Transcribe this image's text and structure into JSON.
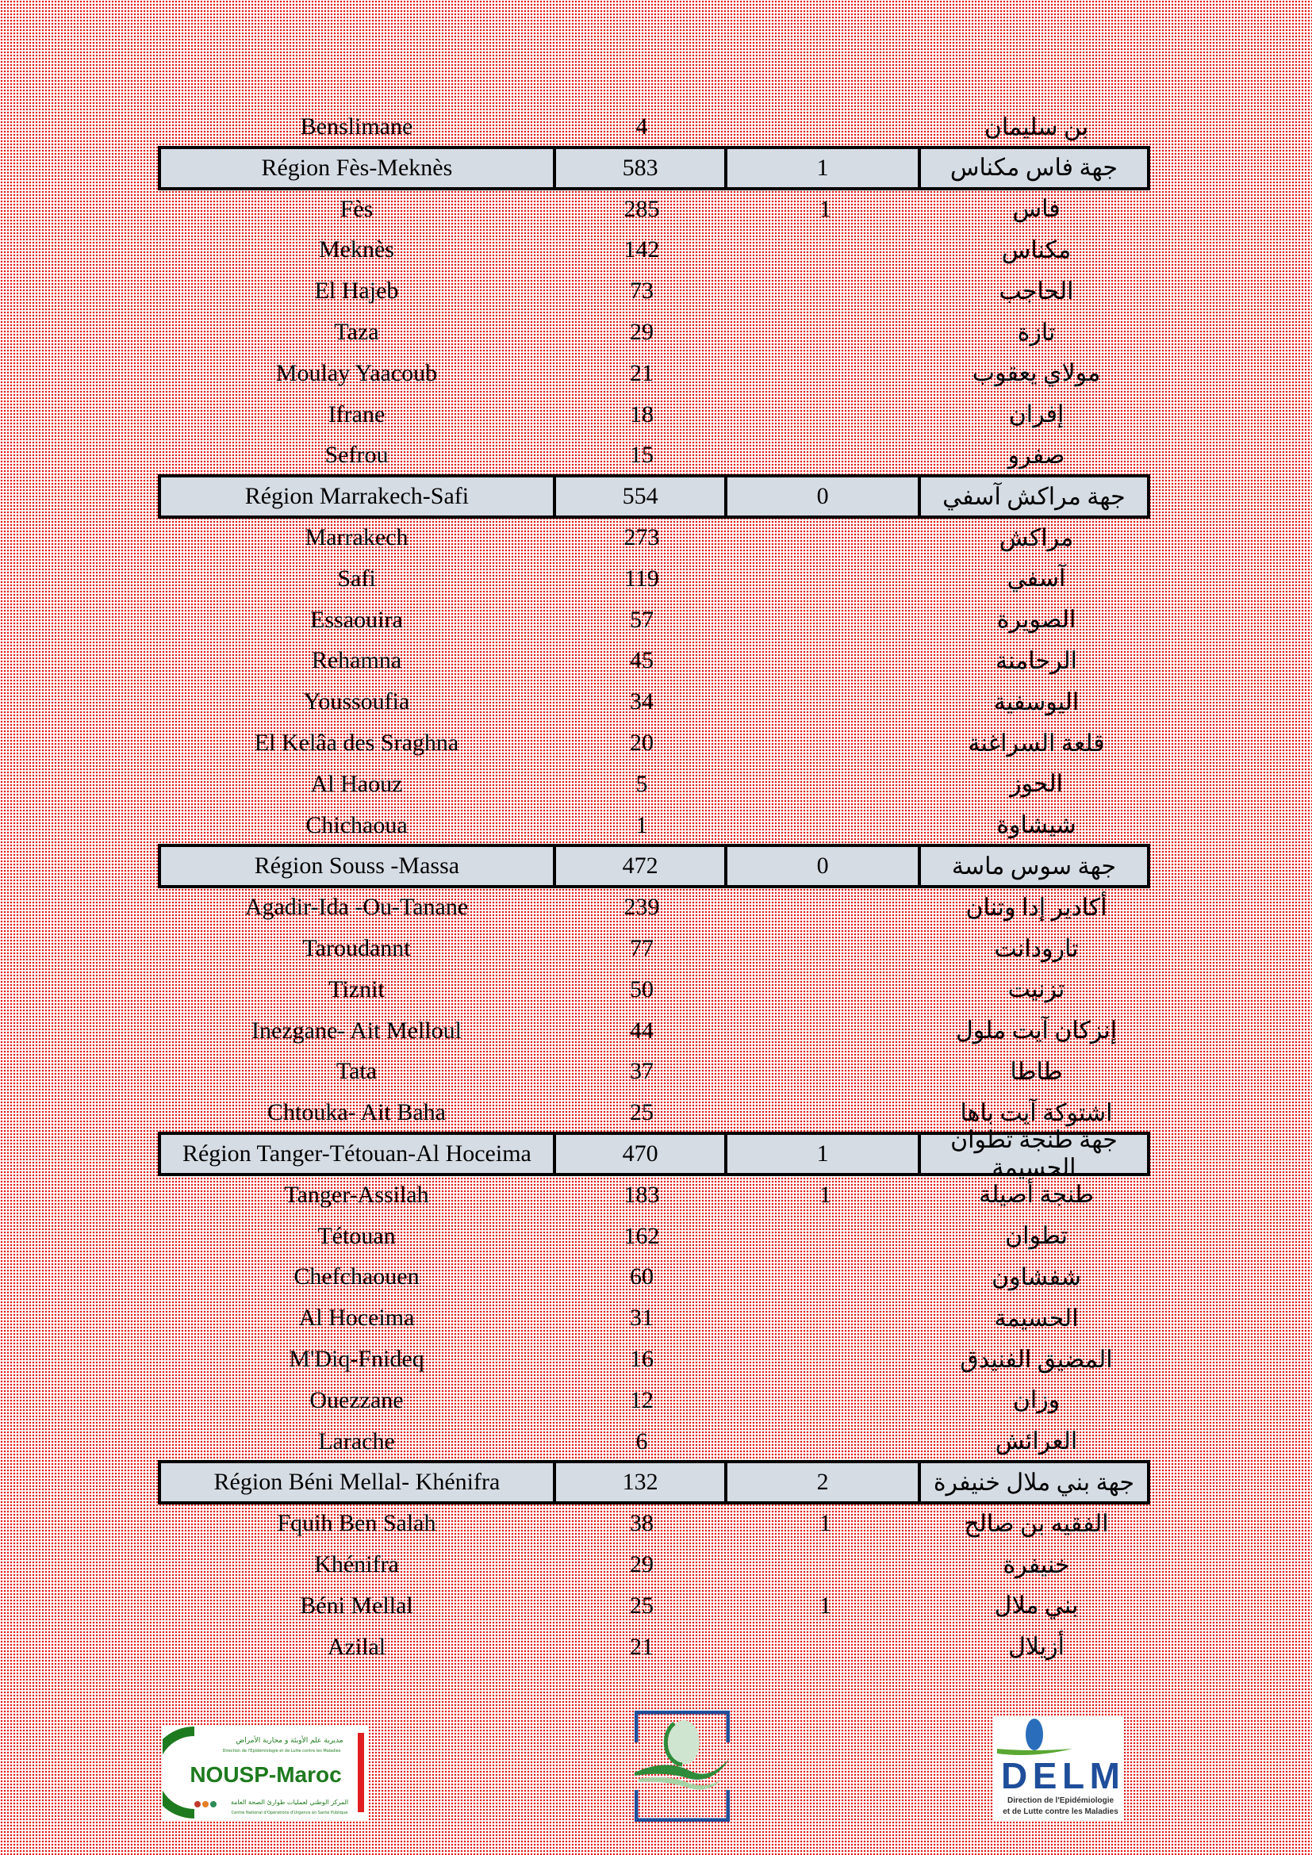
{
  "rows": [
    {
      "type": "row",
      "fr": "Benslimane",
      "cases": "4",
      "deaths": "",
      "ar": "بن سليمان"
    },
    {
      "type": "header",
      "fr": "Région Fès-Meknès",
      "cases": "583",
      "deaths": "1",
      "ar": "جهة فاس مكناس"
    },
    {
      "type": "row",
      "fr": "Fès",
      "cases": "285",
      "deaths": "1",
      "ar": "فاس"
    },
    {
      "type": "row",
      "fr": "Meknès",
      "cases": "142",
      "deaths": "",
      "ar": "مكناس"
    },
    {
      "type": "row",
      "fr": "El  Hajeb",
      "cases": "73",
      "deaths": "",
      "ar": "الحاجب"
    },
    {
      "type": "row",
      "fr": "Taza",
      "cases": "29",
      "deaths": "",
      "ar": "تازة"
    },
    {
      "type": "row",
      "fr": "Moulay Yaacoub",
      "cases": "21",
      "deaths": "",
      "ar": "مولاي يعقوب"
    },
    {
      "type": "row",
      "fr": "Ifrane",
      "cases": "18",
      "deaths": "",
      "ar": "إفران"
    },
    {
      "type": "row",
      "fr": "Sefrou",
      "cases": "15",
      "deaths": "",
      "ar": "صفرو"
    },
    {
      "type": "header",
      "fr": "Région Marrakech-Safi",
      "cases": "554",
      "deaths": "0",
      "ar": "جهة مراكش آسفي"
    },
    {
      "type": "row",
      "fr": "Marrakech",
      "cases": "273",
      "deaths": "",
      "ar": "مراكش"
    },
    {
      "type": "row",
      "fr": "Safi",
      "cases": "119",
      "deaths": "",
      "ar": "آسفي"
    },
    {
      "type": "row",
      "fr": "Essaouira",
      "cases": "57",
      "deaths": "",
      "ar": "الصويرة"
    },
    {
      "type": "row",
      "fr": "Rehamna",
      "cases": "45",
      "deaths": "",
      "ar": "الرحامنة"
    },
    {
      "type": "row",
      "fr": "Youssoufia",
      "cases": "34",
      "deaths": "",
      "ar": "اليوسفية"
    },
    {
      "type": "row",
      "fr": "El Kelâa des Sraghna",
      "cases": "20",
      "deaths": "",
      "ar": "قلعة السراغنة"
    },
    {
      "type": "row",
      "fr": "Al  Haouz",
      "cases": "5",
      "deaths": "",
      "ar": "الحوز"
    },
    {
      "type": "row",
      "fr": "Chichaoua",
      "cases": "1",
      "deaths": "",
      "ar": "شيشاوة"
    },
    {
      "type": "header",
      "fr": "Région Souss -Massa",
      "cases": "472",
      "deaths": "0",
      "ar": "جهة سوس ماسة"
    },
    {
      "type": "row",
      "fr": "Agadir-Ida -Ou-Tanane",
      "cases": "239",
      "deaths": "",
      "ar": "أكادير إدا وتنان"
    },
    {
      "type": "row",
      "fr": "Taroudannt",
      "cases": "77",
      "deaths": "",
      "ar": "تارودانت"
    },
    {
      "type": "row",
      "fr": "Tiznit",
      "cases": "50",
      "deaths": "",
      "ar": "تزنيت"
    },
    {
      "type": "row",
      "fr": "Inezgane- Ait Melloul",
      "cases": "44",
      "deaths": "",
      "ar": "إنزكان آيت ملول"
    },
    {
      "type": "row",
      "fr": "Tata",
      "cases": "37",
      "deaths": "",
      "ar": "طاطا"
    },
    {
      "type": "row",
      "fr": "Chtouka- Ait Baha",
      "cases": "25",
      "deaths": "",
      "ar": "اشتوكة آيت باها"
    },
    {
      "type": "header",
      "fr": "Région Tanger-Tétouan-Al Hoceima",
      "cases": "470",
      "deaths": "1",
      "ar": "جهة طنجة تطوان الحسيمة"
    },
    {
      "type": "row",
      "fr": "Tanger-Assilah",
      "cases": "183",
      "deaths": "1",
      "ar": "طنجة أصيلة"
    },
    {
      "type": "row",
      "fr": "Tétouan",
      "cases": "162",
      "deaths": "",
      "ar": "تطوان"
    },
    {
      "type": "row",
      "fr": "Chefchaouen",
      "cases": "60",
      "deaths": "",
      "ar": "شفشاون"
    },
    {
      "type": "row",
      "fr": "Al Hoceima",
      "cases": "31",
      "deaths": "",
      "ar": "الحسيمة"
    },
    {
      "type": "row",
      "fr": "M'Diq-Fnideq",
      "cases": "16",
      "deaths": "",
      "ar": "المضيق الفنيدق"
    },
    {
      "type": "row",
      "fr": "Ouezzane",
      "cases": "12",
      "deaths": "",
      "ar": "وزان"
    },
    {
      "type": "row",
      "fr": "Larache",
      "cases": "6",
      "deaths": "",
      "ar": "العرائش"
    },
    {
      "type": "header",
      "fr": "Région Béni Mellal- Khénifra",
      "cases": "132",
      "deaths": "2",
      "ar": "جهة بني ملال خنيفرة"
    },
    {
      "type": "row",
      "fr": "Fquih Ben Salah",
      "cases": "38",
      "deaths": "1",
      "ar": "الفقيه بن صالح"
    },
    {
      "type": "row",
      "fr": "Khénifra",
      "cases": "29",
      "deaths": "",
      "ar": "خنيفرة"
    },
    {
      "type": "row",
      "fr": "Béni Mellal",
      "cases": "25",
      "deaths": "1",
      "ar": "بني ملال"
    },
    {
      "type": "row",
      "fr": "Azilal",
      "cases": "21",
      "deaths": "",
      "ar": "أزيلال"
    }
  ],
  "logos": {
    "nousp": {
      "title": "NOUSP-Maroc",
      "ar_top": "مديرية علم الأوبئة و محاربة الأمراض",
      "fr_top": "Direction de l'Epidémiologie et de Lutte contre les Maladies",
      "ar_bottom": "المركز الوطني لعمليات طوارئ الصحة العامة",
      "fr_bottom": "Centre National d'Opérations d'Urgence en Santé Publique"
    },
    "delm": {
      "title": "DELM",
      "subtitle_1": "Direction de l'Epidémiologie",
      "subtitle_2": "et de Lutte contre les Maladies"
    }
  },
  "colors": {
    "header_bg": "#d6dce4",
    "pattern": "#e01a1a",
    "logo_green": "#1e7a1e",
    "logo_blue": "#1f4e9a"
  }
}
